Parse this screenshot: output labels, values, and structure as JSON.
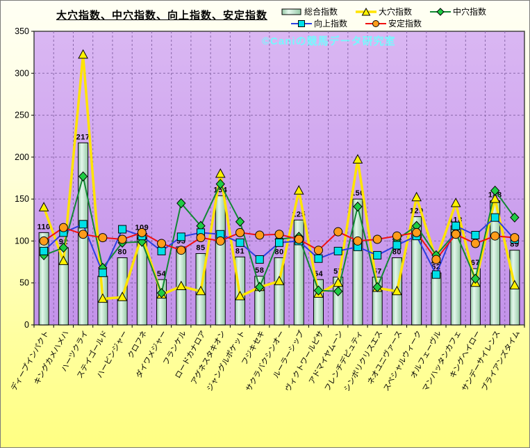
{
  "title": "大穴指数、中穴指数、向上指数、安定指数",
  "watermark": "©Caniの競馬データ研究室",
  "legend": [
    {
      "label": "総合指数",
      "kind": "bar"
    },
    {
      "label": "大穴指数",
      "kind": "line",
      "marker": "triangle"
    },
    {
      "label": "中穴指数",
      "kind": "line",
      "marker": "diamond"
    },
    {
      "label": "向上指数",
      "kind": "line",
      "marker": "square"
    },
    {
      "label": "安定指数",
      "kind": "line",
      "marker": "circle"
    }
  ],
  "colors": {
    "plot_bg_top": "#dab7f3",
    "plot_bg_bottom": "#c392ea",
    "grid": "#8a68aa",
    "bar_fill_light": "#e4f7ec",
    "bar_fill_dark": "#96c9a6",
    "bar_stroke": "#000000",
    "yellow_line": "#ffe400",
    "yellow_marker": "#fff200",
    "green_line": "#118833",
    "green_marker": "#1fcc44",
    "blue_line": "#2b3fe0",
    "blue_marker": "#00e0e8",
    "red_line": "#f01010",
    "red_marker": "#ff9c1a"
  },
  "chart_data": {
    "type": "bar",
    "title": "大穴指数、中穴指数、向上指数、安定指数",
    "ylim": [
      0,
      350
    ],
    "ytick_step": 50,
    "grid": true,
    "legend_position": "top-right",
    "categories": [
      "ディープインパクト",
      "キングカメハメハ",
      "ハーツクライ",
      "ステイゴールド",
      "ハービンジャー",
      "クロフネ",
      "ダイワメジャー",
      "フランケル",
      "ロードカナロア",
      "アグネスタキオン",
      "ジャングルポケット",
      "フジキセキ",
      "サクラバクシンオー",
      "ルーラーシップ",
      "ヴィクトワールピサ",
      "アドマイヤムーン",
      "フレンチデピュティ",
      "シンボリクリスエス",
      "ネオユニヴァース",
      "スペシャルウィーク",
      "オルフェーヴル",
      "マンハッタンカフェ",
      "キングヘイロー",
      "サンデーサイレンス",
      "ブライアンズタイム"
    ],
    "series": [
      {
        "name": "総合指数",
        "type": "bar",
        "labels_shown": true,
        "values": [
          110,
          92,
          217,
          58,
          80,
          109,
          54,
          93,
          85,
          154,
          81,
          58,
          80,
          125,
          54,
          57,
          150,
          57,
          80,
          129,
          62,
          118,
          67,
          148,
          89
        ]
      },
      {
        "name": "大穴指数",
        "type": "line",
        "marker": "triangle",
        "values": [
          140,
          76,
          322,
          31,
          33,
          107,
          36,
          46,
          40,
          180,
          34,
          45,
          52,
          160,
          37,
          50,
          197,
          44,
          40,
          152,
          78,
          145,
          50,
          150,
          47
        ]
      },
      {
        "name": "中穴指数",
        "type": "line",
        "marker": "diamond",
        "values": [
          83,
          92,
          177,
          68,
          98,
          99,
          38,
          145,
          118,
          168,
          123,
          45,
          102,
          105,
          41,
          40,
          141,
          45,
          102,
          118,
          83,
          110,
          55,
          160,
          128
        ]
      },
      {
        "name": "向上指数",
        "type": "line",
        "marker": "square",
        "values": [
          88,
          110,
          120,
          62,
          114,
          106,
          88,
          105,
          110,
          108,
          98,
          78,
          98,
          100,
          79,
          88,
          93,
          83,
          95,
          106,
          60,
          118,
          107,
          128,
          102
        ]
      },
      {
        "name": "安定指数",
        "type": "line",
        "marker": "circle",
        "values": [
          100,
          116,
          108,
          104,
          102,
          110,
          97,
          89,
          104,
          100,
          110,
          107,
          108,
          102,
          89,
          111,
          100,
          102,
          106,
          110,
          78,
          108,
          97,
          106,
          104
        ]
      }
    ]
  }
}
